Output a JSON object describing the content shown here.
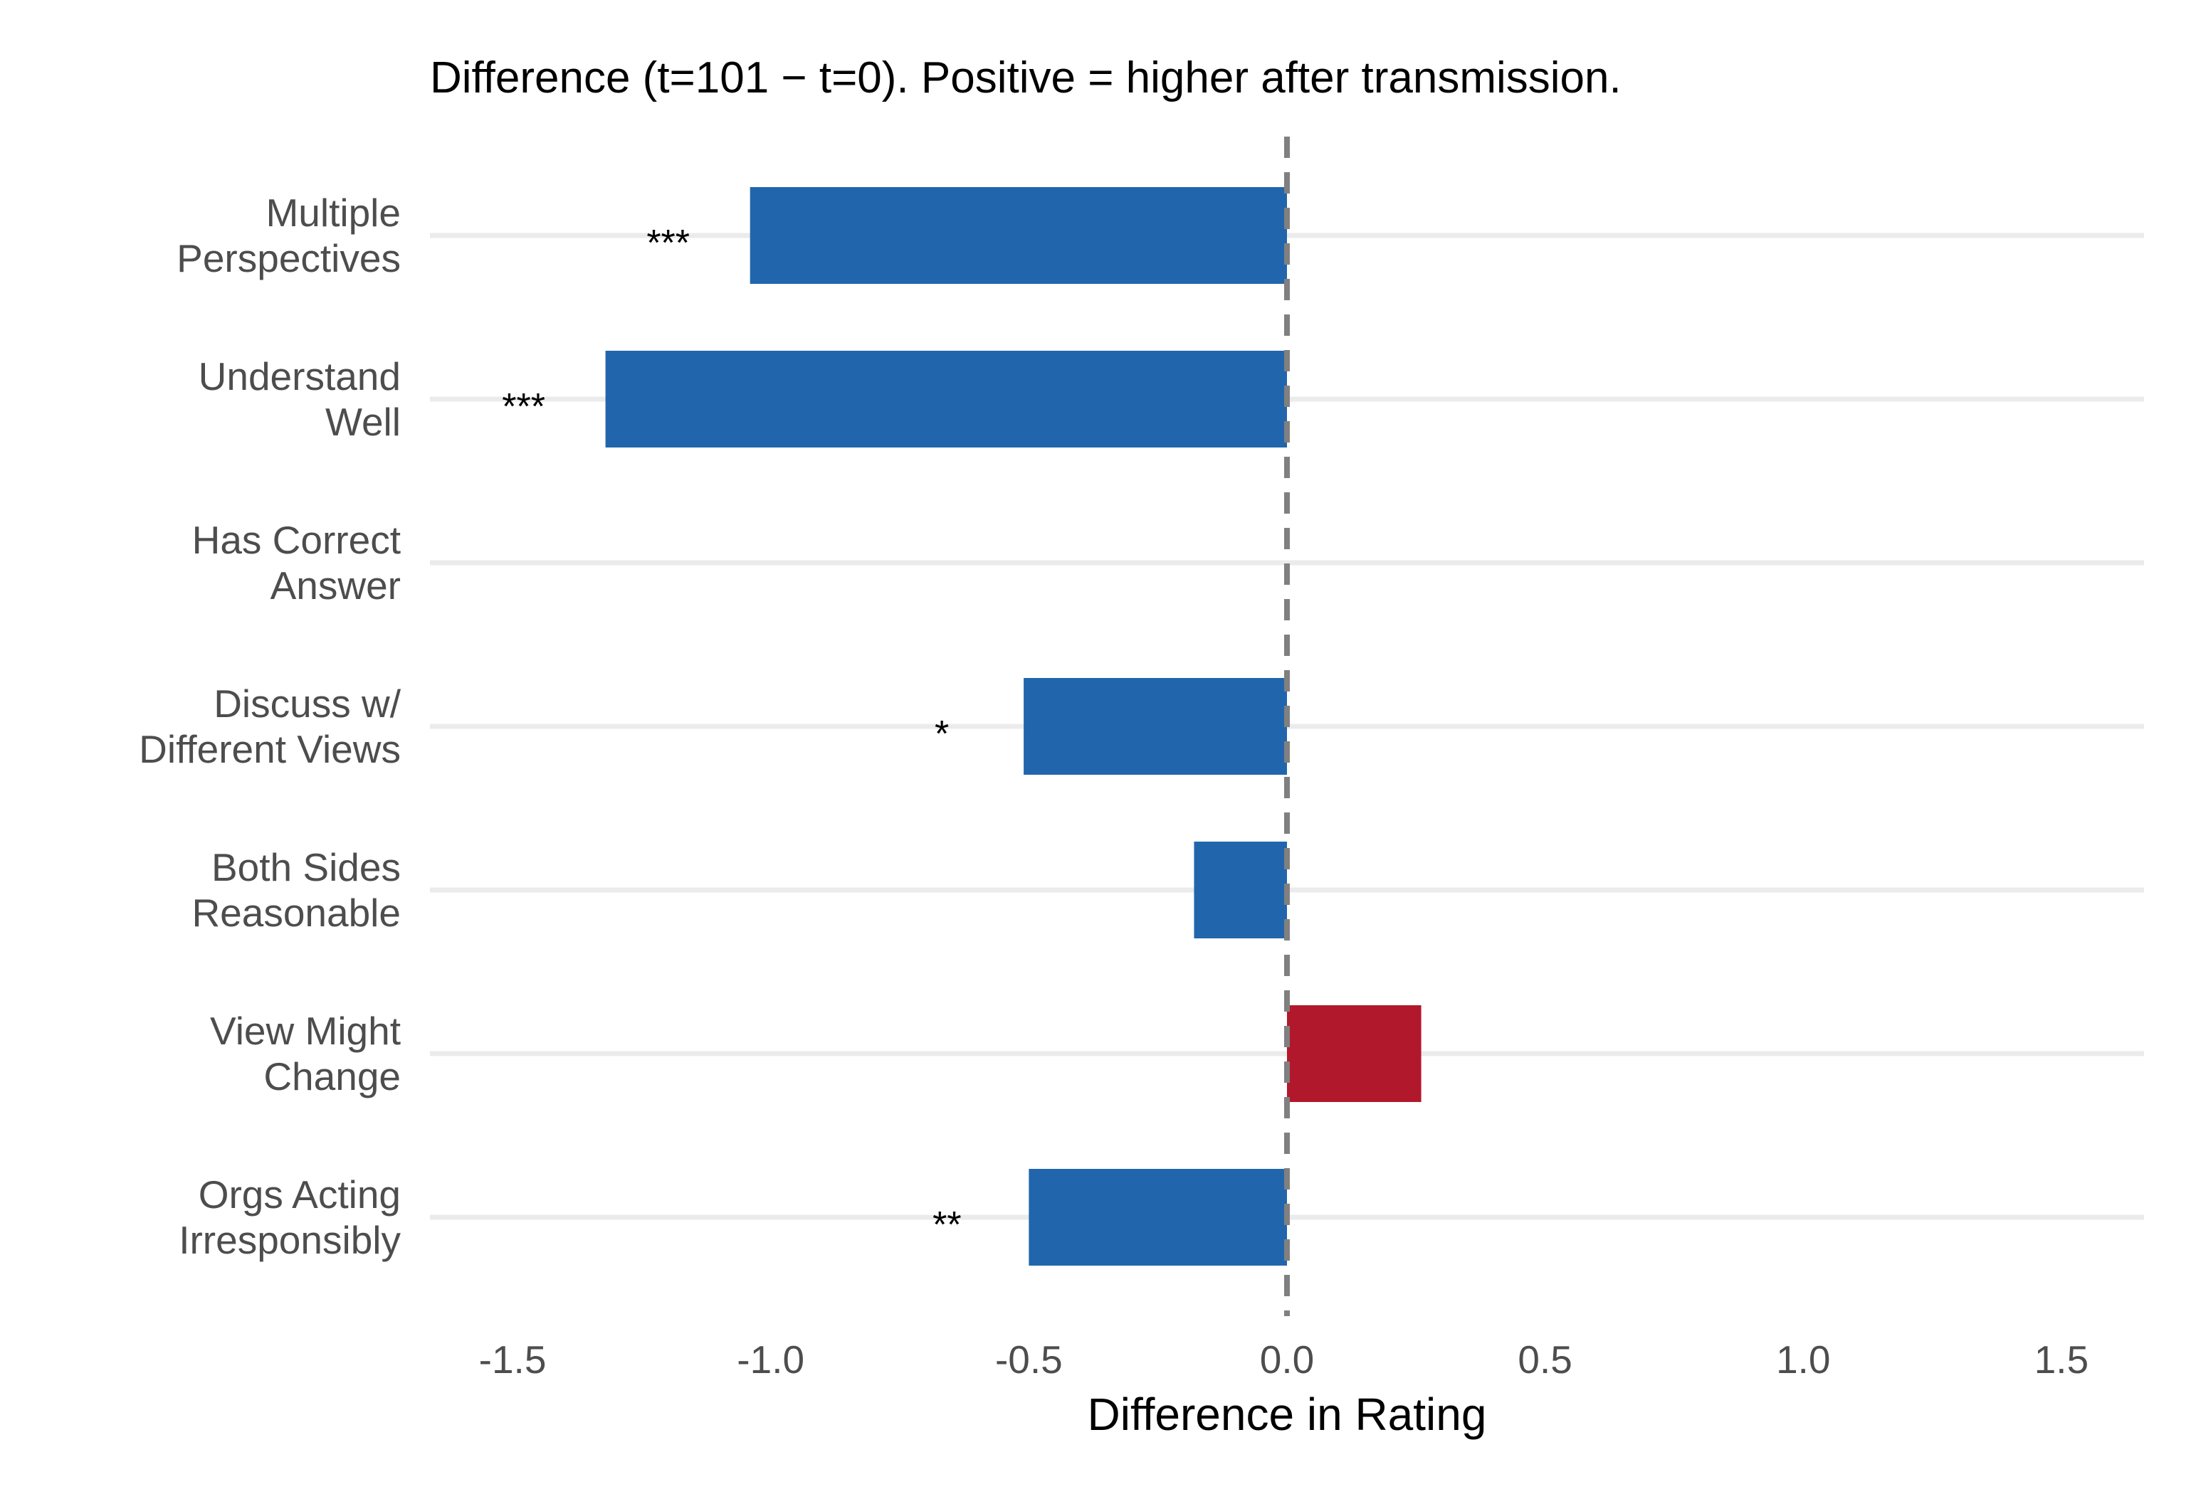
{
  "chart_data": {
    "type": "bar",
    "orientation": "horizontal",
    "title": "Difference (t=101 − t=0). Positive = higher after transmission.",
    "xlabel": "Difference in Rating",
    "ylabel": "",
    "categories": [
      "Multiple\nPerspectives",
      "Understand\nWell",
      "Has Correct\nAnswer",
      "Discuss w/\nDifferent Views",
      "Both Sides\nReasonable",
      "View Might\nChange",
      "Orgs Acting\nIrresponsibly"
    ],
    "values": [
      -1.04,
      -1.32,
      0.0,
      -0.51,
      -0.18,
      0.26,
      -0.5
    ],
    "significance": [
      "***",
      "***",
      "",
      "*",
      "",
      "",
      "**"
    ],
    "xlim": [
      -1.66,
      1.66
    ],
    "xticks": [
      -1.5,
      -1.0,
      -0.5,
      0.0,
      0.5,
      1.0,
      1.5
    ],
    "xtick_labels": [
      "-1.5",
      "-1.0",
      "-0.5",
      "0.0",
      "0.5",
      "1.0",
      "1.5"
    ],
    "reference_line": 0,
    "reference_line_style": "dashed",
    "grid": "horizontal-major",
    "legend": "none",
    "colors": {
      "negative": "#2166ac",
      "positive": "#b2182b",
      "grid": "#ebebeb",
      "reference": "#808080"
    }
  }
}
